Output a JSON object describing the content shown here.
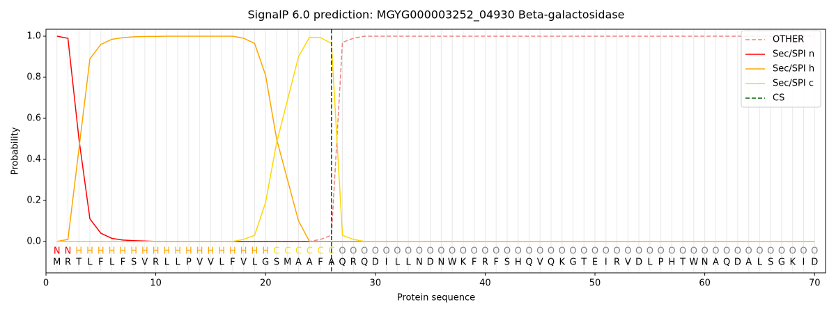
{
  "chart_data": {
    "type": "line",
    "title": "SignalP 6.0 prediction: MGYG000003252_04930 Beta-galactosidase",
    "x_label": "Protein sequence",
    "y_label": "Probability",
    "x": [
      1,
      2,
      3,
      4,
      5,
      6,
      7,
      8,
      9,
      10,
      11,
      12,
      13,
      14,
      15,
      16,
      17,
      18,
      19,
      20,
      21,
      22,
      23,
      24,
      25,
      26,
      27,
      28,
      29,
      30,
      31,
      32,
      33,
      34,
      35,
      36,
      37,
      38,
      39,
      40,
      41,
      42,
      43,
      44,
      45,
      46,
      47,
      48,
      49,
      50,
      51,
      52,
      53,
      54,
      55,
      56,
      57,
      58,
      59,
      60,
      61,
      62,
      63,
      64,
      65,
      66,
      67,
      68,
      69,
      70
    ],
    "residues": [
      "M",
      "R",
      "T",
      "L",
      "F",
      "L",
      "F",
      "S",
      "V",
      "R",
      "L",
      "L",
      "P",
      "V",
      "V",
      "L",
      "F",
      "V",
      "L",
      "G",
      "S",
      "M",
      "A",
      "A",
      "F",
      "A",
      "Q",
      "R",
      "Q",
      "D",
      "I",
      "L",
      "L",
      "N",
      "D",
      "N",
      "W",
      "K",
      "F",
      "R",
      "F",
      "S",
      "H",
      "Q",
      "V",
      "Q",
      "K",
      "G",
      "T",
      "E",
      "I",
      "R",
      "V",
      "D",
      "L",
      "P",
      "H",
      "T",
      "W",
      "N",
      "A",
      "Q",
      "D",
      "A",
      "L",
      "S",
      "G",
      "K",
      "I",
      "D"
    ],
    "region_labels": [
      "N",
      "N",
      "H",
      "H",
      "H",
      "H",
      "H",
      "H",
      "H",
      "H",
      "H",
      "H",
      "H",
      "H",
      "H",
      "H",
      "H",
      "H",
      "H",
      "H",
      "C",
      "C",
      "C",
      "C",
      "C",
      "C",
      "O",
      "O",
      "O",
      "O",
      "O",
      "O",
      "O",
      "O",
      "O",
      "O",
      "O",
      "O",
      "O",
      "O",
      "O",
      "O",
      "O",
      "O",
      "O",
      "O",
      "O",
      "O",
      "O",
      "O",
      "O",
      "O",
      "O",
      "O",
      "O",
      "O",
      "O",
      "O",
      "O",
      "O",
      "O",
      "O",
      "O",
      "O",
      "O",
      "O",
      "O",
      "O",
      "O",
      "O"
    ],
    "label_colors": {
      "N": "#ff0000",
      "H": "#ffa500",
      "C": "#ffd700",
      "O": "#808080"
    },
    "series": [
      {
        "name": "OTHER",
        "color": "#f08080",
        "dashed": true,
        "values": [
          0,
          0,
          0,
          0,
          0,
          0,
          0,
          0,
          0,
          0,
          0,
          0,
          0,
          0,
          0,
          0,
          0,
          0,
          0,
          0,
          0,
          0,
          0,
          0,
          0.01,
          0.03,
          0.97,
          0.99,
          1,
          1,
          1,
          1,
          1,
          1,
          1,
          1,
          1,
          1,
          1,
          1,
          1,
          1,
          1,
          1,
          1,
          1,
          1,
          1,
          1,
          1,
          1,
          1,
          1,
          1,
          1,
          1,
          1,
          1,
          1,
          1,
          1,
          1,
          1,
          1,
          1,
          1,
          1,
          1,
          1,
          1
        ]
      },
      {
        "name": "Sec/SPI n",
        "color": "#ff0000",
        "dashed": false,
        "values": [
          1,
          0.99,
          0.5,
          0.11,
          0.04,
          0.015,
          0.007,
          0.004,
          0.002,
          0,
          0,
          0,
          0,
          0,
          0,
          0,
          0,
          0,
          0,
          0,
          0,
          0,
          0,
          0,
          0,
          0,
          0,
          0,
          0,
          0,
          0,
          0,
          0,
          0,
          0,
          0,
          0,
          0,
          0,
          0,
          0,
          0,
          0,
          0,
          0,
          0,
          0,
          0,
          0,
          0,
          0,
          0,
          0,
          0,
          0,
          0,
          0,
          0,
          0,
          0,
          0,
          0,
          0,
          0,
          0,
          0,
          0,
          0,
          0,
          0
        ]
      },
      {
        "name": "Sec/SPI h",
        "color": "#ffa500",
        "dashed": false,
        "values": [
          0,
          0.01,
          0.45,
          0.89,
          0.96,
          0.985,
          0.993,
          0.997,
          0.999,
          0.999,
          1,
          1,
          1,
          1,
          1,
          1,
          1,
          0.99,
          0.965,
          0.81,
          0.5,
          0.3,
          0.1,
          0,
          0,
          0,
          0,
          0,
          0,
          0,
          0,
          0,
          0,
          0,
          0,
          0,
          0,
          0,
          0,
          0,
          0,
          0,
          0,
          0,
          0,
          0,
          0,
          0,
          0,
          0,
          0,
          0,
          0,
          0,
          0,
          0,
          0,
          0,
          0,
          0,
          0,
          0,
          0,
          0,
          0,
          0,
          0,
          0,
          0,
          0
        ]
      },
      {
        "name": "Sec/SPI c",
        "color": "#ffd700",
        "dashed": false,
        "values": [
          0,
          0,
          0,
          0,
          0,
          0,
          0,
          0,
          0,
          0,
          0,
          0,
          0,
          0,
          0,
          0,
          0,
          0.01,
          0.03,
          0.19,
          0.48,
          0.69,
          0.9,
          0.995,
          0.993,
          0.965,
          0.03,
          0.01,
          0,
          0,
          0,
          0,
          0,
          0,
          0,
          0,
          0,
          0,
          0,
          0,
          0,
          0,
          0,
          0,
          0,
          0,
          0,
          0,
          0,
          0,
          0,
          0,
          0,
          0,
          0,
          0,
          0,
          0,
          0,
          0,
          0,
          0,
          0,
          0,
          0,
          0,
          0,
          0,
          0,
          0
        ]
      }
    ],
    "cs_line": {
      "name": "CS",
      "x": 26,
      "color": "#006400"
    },
    "xlim": [
      0,
      71
    ],
    "ylim": [
      -0.153,
      1.034
    ],
    "xticks": [
      0,
      10,
      20,
      30,
      40,
      50,
      60,
      70
    ],
    "yticks": [
      {
        "value": 0,
        "label": "0.0"
      },
      {
        "value": 0.2,
        "label": "0.2"
      },
      {
        "value": 0.4,
        "label": "0.4"
      },
      {
        "value": 0.6,
        "label": "0.6"
      },
      {
        "value": 0.8,
        "label": "0.8"
      },
      {
        "value": 1,
        "label": "1.0"
      }
    ],
    "grid": true,
    "legend_position": "upper right"
  }
}
